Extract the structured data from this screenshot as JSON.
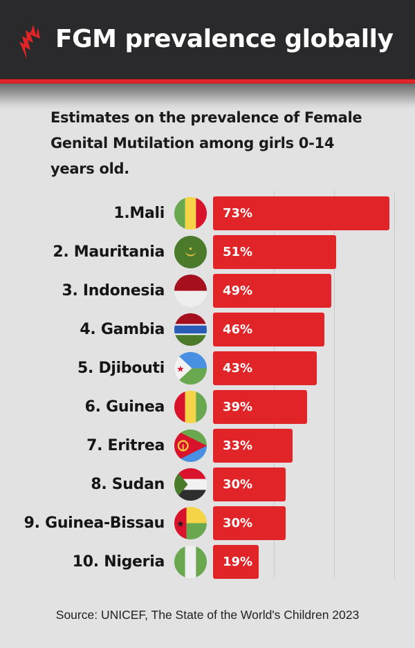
{
  "header": {
    "logo": "sbs-logo-icon",
    "title": "FGM prevalence globally"
  },
  "subtitle": "Estimates on the prevalence of Female Genital Mutilation among girls 0-14 years old.",
  "colors": {
    "header_bg": "#2a2a2c",
    "accent_red": "#e02427",
    "background": "#e2e2e2",
    "bar": "#e02427",
    "bar_text": "#ffffff"
  },
  "rows": [
    {
      "label": "1.Mali",
      "value_label": "73%",
      "value": 73,
      "flag": "mali-flag"
    },
    {
      "label": "2. Mauritania",
      "value_label": "51%",
      "value": 51,
      "flag": "mauritania-flag"
    },
    {
      "label": "3. Indonesia",
      "value_label": "49%",
      "value": 49,
      "flag": "indonesia-flag"
    },
    {
      "label": "4. Gambia",
      "value_label": "46%",
      "value": 46,
      "flag": "gambia-flag"
    },
    {
      "label": "5. Djibouti",
      "value_label": "43%",
      "value": 43,
      "flag": "djibouti-flag"
    },
    {
      "label": "6. Guinea",
      "value_label": "39%",
      "value": 39,
      "flag": "guinea-flag"
    },
    {
      "label": "7. Eritrea",
      "value_label": "33%",
      "value": 33,
      "flag": "eritrea-flag"
    },
    {
      "label": "8. Sudan",
      "value_label": "30%",
      "value": 30,
      "flag": "sudan-flag"
    },
    {
      "label": "9. Guinea-Bissau",
      "value_label": "30%",
      "value": 30,
      "flag": "guinea-bissau-flag"
    },
    {
      "label": "10. Nigeria",
      "value_label": "19%",
      "value": 19,
      "flag": "nigeria-flag"
    }
  ],
  "source": "Source: UNICEF, The State of the World's Children 2023",
  "chart_data": {
    "type": "bar",
    "orientation": "horizontal",
    "title": "FGM prevalence globally",
    "subtitle": "Estimates on the prevalence of Female Genital Mutilation among girls 0-14 years old.",
    "categories": [
      "Mali",
      "Mauritania",
      "Indonesia",
      "Gambia",
      "Djibouti",
      "Guinea",
      "Eritrea",
      "Sudan",
      "Guinea-Bissau",
      "Nigeria"
    ],
    "values": [
      73,
      51,
      49,
      46,
      43,
      39,
      33,
      30,
      30,
      19
    ],
    "unit": "%",
    "xlabel": "",
    "ylabel": "",
    "xlim": [
      0,
      75
    ],
    "grid": {
      "vertical": true,
      "interval": 25
    },
    "data_labels": true,
    "legend": null,
    "source": "Source: UNICEF, The State of the World's Children 2023"
  }
}
